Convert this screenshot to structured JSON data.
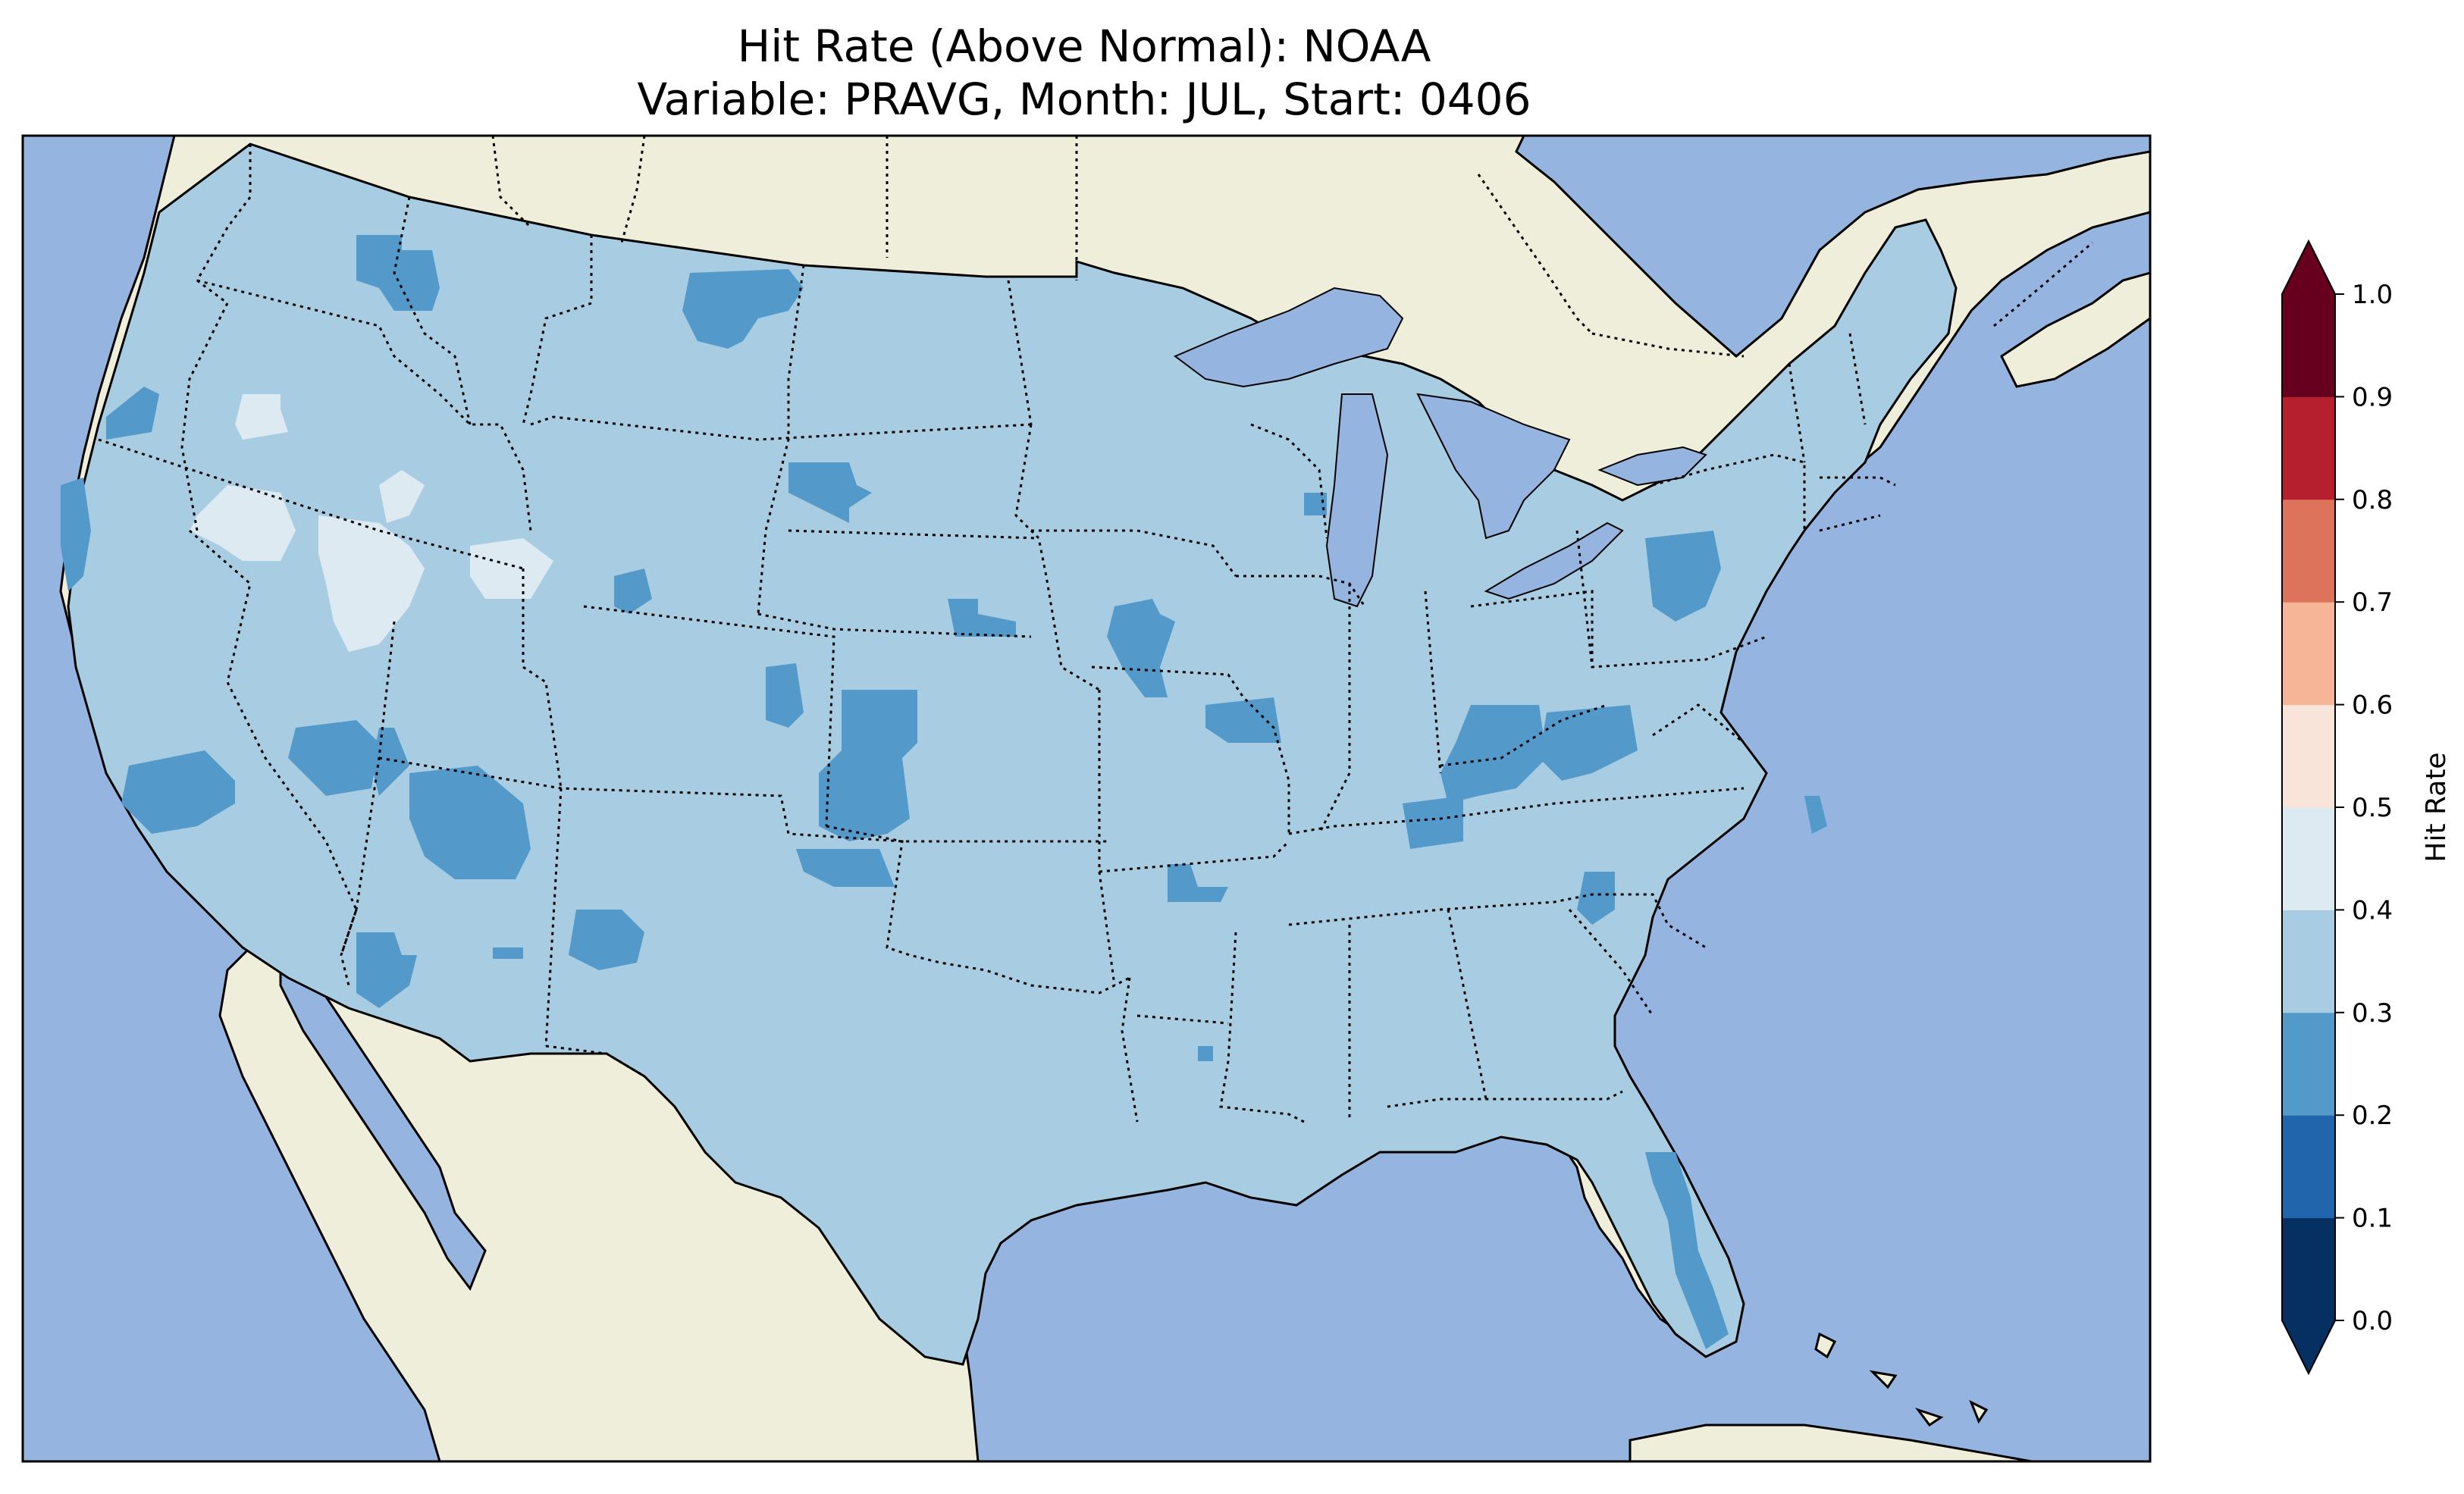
{
  "title": {
    "line1": "Hit Rate (Above Normal): NOAA",
    "line2": "Variable: PRAVG, Month: JUL, Start: 0406"
  },
  "colors": {
    "ocean": "#95b4e0",
    "land": "#efeedb",
    "lakes": "#95b4e0",
    "field_base": "#a8cde3",
    "field_low": "#5399c9",
    "field_high": "#deeaf2"
  },
  "colorbar": {
    "label": "Hit Rate",
    "ticks": [
      "0.0",
      "0.1",
      "0.2",
      "0.3",
      "0.4",
      "0.5",
      "0.6",
      "0.7",
      "0.8",
      "0.9",
      "1.0"
    ],
    "bins": [
      {
        "range": "0.0-0.1",
        "color": "#053061"
      },
      {
        "range": "0.1-0.2",
        "color": "#2166ac"
      },
      {
        "range": "0.2-0.3",
        "color": "#5399c9"
      },
      {
        "range": "0.3-0.4",
        "color": "#a8cde3"
      },
      {
        "range": "0.4-0.5",
        "color": "#deeaf2"
      },
      {
        "range": "0.5-0.6",
        "color": "#f9e4d9"
      },
      {
        "range": "0.6-0.7",
        "color": "#f5b596"
      },
      {
        "range": "0.7-0.8",
        "color": "#dd735b"
      },
      {
        "range": "0.8-0.9",
        "color": "#b61f2e"
      },
      {
        "range": "0.9-1.0",
        "color": "#67001f"
      }
    ],
    "extend": "both"
  }
}
